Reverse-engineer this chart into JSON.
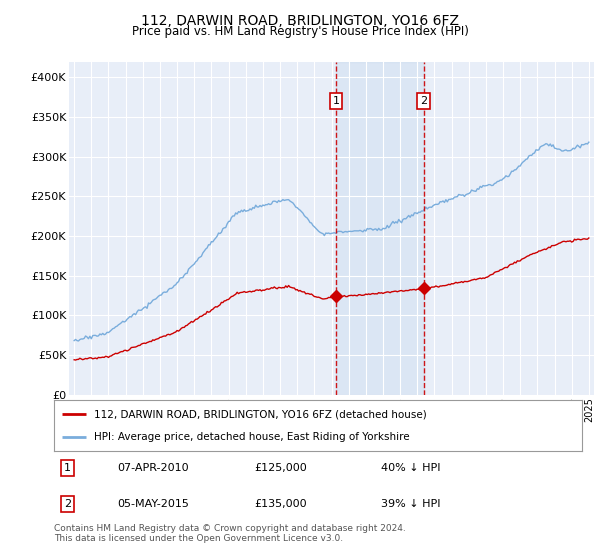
{
  "title": "112, DARWIN ROAD, BRIDLINGTON, YO16 6FZ",
  "subtitle": "Price paid vs. HM Land Registry's House Price Index (HPI)",
  "footer": "Contains HM Land Registry data © Crown copyright and database right 2024.\nThis data is licensed under the Open Government Licence v3.0.",
  "legend_line1": "112, DARWIN ROAD, BRIDLINGTON, YO16 6FZ (detached house)",
  "legend_line2": "HPI: Average price, detached house, East Riding of Yorkshire",
  "sale1_date": "07-APR-2010",
  "sale1_price": "£125,000",
  "sale1_hpi": "40% ↓ HPI",
  "sale2_date": "05-MAY-2015",
  "sale2_price": "£135,000",
  "sale2_hpi": "39% ↓ HPI",
  "hpi_color": "#7aaddc",
  "price_color": "#cc0000",
  "background_color": "#ffffff",
  "plot_bg_color": "#e8eef8",
  "grid_color": "#ffffff",
  "sale1_year": 2010.27,
  "sale2_year": 2015.38,
  "sale1_price_val": 125000,
  "sale2_price_val": 135000,
  "ylim_max": 420000,
  "xlim_start": 1994.7,
  "xlim_end": 2025.3
}
